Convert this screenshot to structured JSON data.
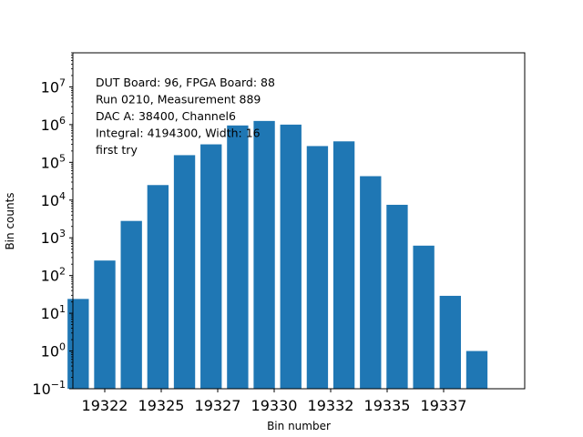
{
  "chart_data": {
    "type": "bar",
    "xlabel": "Bin number",
    "ylabel": "Bin counts",
    "yscale": "log",
    "ylim": [
      0.1,
      80000000
    ],
    "xlim": [
      19320.8,
      19337.8
    ],
    "bar_color": "#1f77b4",
    "bar_width": 0.8,
    "x": [
      19321,
      19322,
      19323,
      19324,
      19325,
      19326,
      19327,
      19328,
      19329,
      19330,
      19331,
      19332,
      19333,
      19334,
      19335,
      19336,
      19337
    ],
    "values": [
      24,
      250,
      2800,
      25000,
      155000,
      300000,
      950000,
      1250000,
      1000000,
      270000,
      360000,
      43000,
      7500,
      620,
      29,
      1,
      0
    ],
    "x_ticks": [
      {
        "value": 19322,
        "label": "19322"
      },
      {
        "value": 19324.125,
        "label": "19325"
      },
      {
        "value": 19326.25,
        "label": "19327"
      },
      {
        "value": 19328.375,
        "label": "19330"
      },
      {
        "value": 19330.5,
        "label": "19332"
      },
      {
        "value": 19332.625,
        "label": "19335"
      },
      {
        "value": 19334.75,
        "label": "19337"
      }
    ],
    "y_ticks": [
      {
        "exp": -1,
        "base": "10",
        "sup": "−1"
      },
      {
        "exp": 0,
        "base": "10",
        "sup": "0"
      },
      {
        "exp": 1,
        "base": "10",
        "sup": "1"
      },
      {
        "exp": 2,
        "base": "10",
        "sup": "2"
      },
      {
        "exp": 3,
        "base": "10",
        "sup": "3"
      },
      {
        "exp": 4,
        "base": "10",
        "sup": "4"
      },
      {
        "exp": 5,
        "base": "10",
        "sup": "5"
      },
      {
        "exp": 6,
        "base": "10",
        "sup": "6"
      },
      {
        "exp": 7,
        "base": "10",
        "sup": "7"
      }
    ],
    "annotation_lines": [
      "DUT Board: 96, FPGA Board: 88",
      "Run 0210, Measurement 889",
      "DAC A: 38400, Channel6",
      "Integral: 4194300, Width: 16",
      "first try"
    ]
  }
}
